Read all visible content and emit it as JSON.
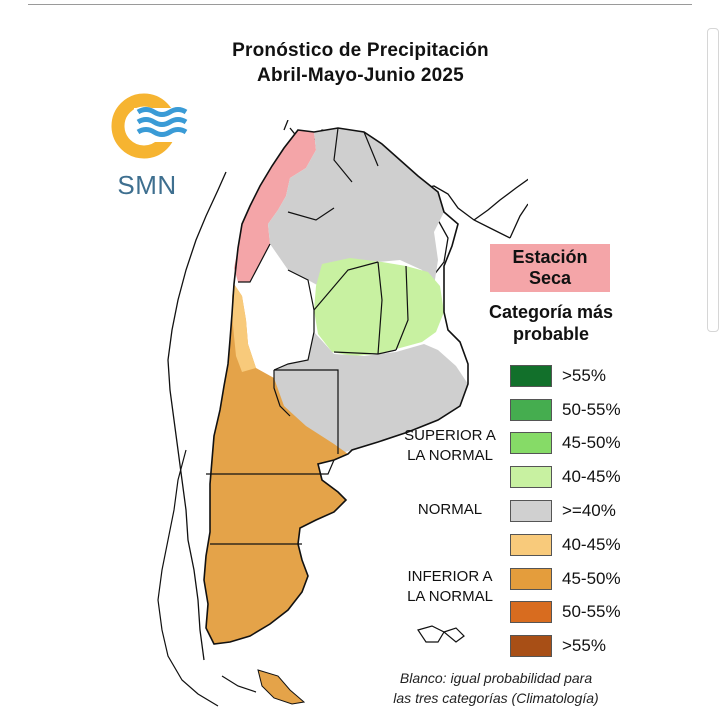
{
  "title": {
    "line1": "Pronóstico de Precipitación",
    "line2": "Abril-Mayo-Junio 2025"
  },
  "logo": {
    "text": "SMN",
    "colors": {
      "sun": "#f6b431",
      "waves": "#3a9bd6",
      "text": "#3e6f8f"
    }
  },
  "dry_season_box": {
    "line1": "Estación",
    "line2": "Seca",
    "color": "#f4a5a8"
  },
  "legend": {
    "title_line1": "Categoría más",
    "title_line2": "probable",
    "groups": {
      "superior_line1": "SUPERIOR A",
      "superior_line2": "LA NORMAL",
      "normal": "NORMAL",
      "inferior_line1": "INFERIOR A",
      "inferior_line2": "LA NORMAL"
    },
    "items": [
      {
        "label": ">55%",
        "color": "#12702b"
      },
      {
        "label": "50-55%",
        "color": "#45ad4f"
      },
      {
        "label": "45-50%",
        "color": "#86db67"
      },
      {
        "label": "40-45%",
        "color": "#c8f1a1"
      },
      {
        "label": ">=40%",
        "color": "#d0d0d0"
      },
      {
        "label": "40-45%",
        "color": "#f8ca7b"
      },
      {
        "label": "45-50%",
        "color": "#e49d3c"
      },
      {
        "label": "50-55%",
        "color": "#d86c1f"
      },
      {
        "label": ">55%",
        "color": "#a84f16"
      }
    ]
  },
  "footnote": {
    "line1": "Blanco: igual probabilidad para",
    "line2": "las tres categorías (Climatología)"
  }
}
